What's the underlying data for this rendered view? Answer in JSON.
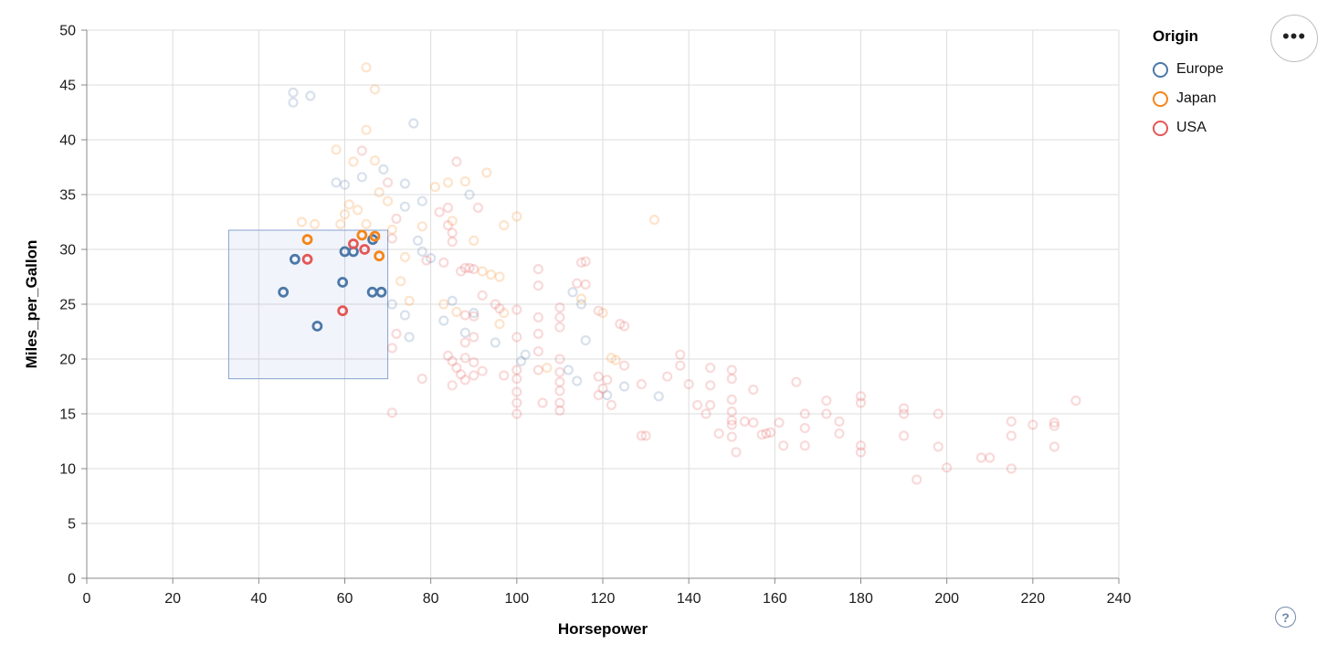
{
  "legend": {
    "title": "Origin",
    "items": [
      {
        "label": "Europe",
        "color": "#4c78a8"
      },
      {
        "label": "Japan",
        "color": "#f58518"
      },
      {
        "label": "USA",
        "color": "#e45756"
      }
    ]
  },
  "controls": {
    "menu_icon": "•••",
    "help_label": "?"
  },
  "chart_data": {
    "type": "scatter",
    "title": "",
    "xlabel": "Horsepower",
    "ylabel": "Miles_per_Gallon",
    "xlim": [
      0,
      240
    ],
    "ylim": [
      0,
      50
    ],
    "x_ticks": [
      0,
      20,
      40,
      60,
      80,
      100,
      120,
      140,
      160,
      180,
      200,
      220,
      240
    ],
    "y_ticks": [
      0,
      5,
      10,
      15,
      20,
      25,
      30,
      35,
      40,
      45,
      50
    ],
    "grid": true,
    "legend_position": "top-right",
    "marker": {
      "shape": "open-circle",
      "radius": 4.5,
      "stroke_width": 2.2,
      "unselected_opacity": 0.22
    },
    "brush_selection": {
      "x": [
        33,
        70
      ],
      "y": [
        18.2,
        31.75
      ],
      "fill": "rgba(114,150,210,0.10)",
      "stroke": "#88a2d0"
    },
    "series": [
      {
        "name": "Europe",
        "color": "#4c78a8",
        "selected": [
          [
            45.7,
            26.1
          ],
          [
            48.4,
            29.1
          ],
          [
            53.6,
            23
          ],
          [
            59.5,
            27
          ],
          [
            60,
            29.8
          ],
          [
            62,
            29.8
          ],
          [
            66.5,
            30.9
          ],
          [
            66.4,
            26.1
          ],
          [
            68.5,
            26.1
          ]
        ],
        "unselected": [
          [
            48,
            44.3
          ],
          [
            52,
            44
          ],
          [
            48,
            43.4
          ],
          [
            76,
            41.5
          ],
          [
            69,
            37.3
          ],
          [
            60,
            35.9
          ],
          [
            58,
            36.1
          ],
          [
            74,
            36
          ],
          [
            89,
            35
          ],
          [
            78,
            34.4
          ],
          [
            74,
            33.9
          ],
          [
            64,
            36.6
          ],
          [
            77,
            30.8
          ],
          [
            78,
            29.8
          ],
          [
            80,
            29.2
          ],
          [
            85,
            25.3
          ],
          [
            90,
            24.2
          ],
          [
            83,
            23.5
          ],
          [
            88,
            22.4
          ],
          [
            95,
            21.5
          ],
          [
            71,
            25
          ],
          [
            74,
            24
          ],
          [
            75,
            22
          ],
          [
            101,
            19.8
          ],
          [
            102,
            20.4
          ],
          [
            113,
            26.1
          ],
          [
            115,
            25
          ],
          [
            116,
            21.7
          ],
          [
            112,
            19
          ],
          [
            114,
            18
          ],
          [
            121,
            16.7
          ],
          [
            125,
            17.5
          ],
          [
            133,
            16.6
          ]
        ]
      },
      {
        "name": "Japan",
        "color": "#f58518",
        "selected": [
          [
            51.3,
            30.9
          ],
          [
            64,
            31.3
          ],
          [
            67,
            31.2
          ],
          [
            68,
            29.4
          ]
        ],
        "unselected": [
          [
            65,
            46.6
          ],
          [
            67,
            44.6
          ],
          [
            65,
            40.9
          ],
          [
            58,
            39.1
          ],
          [
            67,
            38.1
          ],
          [
            62,
            38
          ],
          [
            93,
            37
          ],
          [
            88,
            36.2
          ],
          [
            84,
            36.1
          ],
          [
            81,
            35.7
          ],
          [
            68,
            35.2
          ],
          [
            100,
            33
          ],
          [
            97,
            32.2
          ],
          [
            132,
            32.7
          ],
          [
            90,
            30.8
          ],
          [
            94,
            27.7
          ],
          [
            96,
            27.5
          ],
          [
            92,
            28
          ],
          [
            74,
            29.3
          ],
          [
            73,
            27.1
          ],
          [
            75,
            25.3
          ],
          [
            83,
            25
          ],
          [
            86,
            24.3
          ],
          [
            97,
            24.2
          ],
          [
            96,
            23.2
          ],
          [
            107,
            19.2
          ],
          [
            123,
            19.9
          ],
          [
            122,
            20.1
          ],
          [
            115,
            25.5
          ],
          [
            120,
            24.2
          ],
          [
            60,
            33.2
          ],
          [
            53,
            32.3
          ],
          [
            50,
            32.5
          ],
          [
            59,
            32.3
          ],
          [
            65,
            32.3
          ],
          [
            61,
            34.1
          ],
          [
            70,
            34.4
          ],
          [
            63,
            33.6
          ],
          [
            71,
            31.8
          ],
          [
            78,
            32.1
          ],
          [
            85,
            32.6
          ]
        ]
      },
      {
        "name": "USA",
        "color": "#e45756",
        "selected": [
          [
            51.3,
            29.1
          ],
          [
            62,
            30.5
          ],
          [
            64.6,
            30
          ],
          [
            59.5,
            24.4
          ]
        ],
        "unselected": [
          [
            64,
            39
          ],
          [
            86,
            38
          ],
          [
            70,
            36.1
          ],
          [
            84,
            33.8
          ],
          [
            91,
            33.8
          ],
          [
            72,
            32.8
          ],
          [
            82,
            33.4
          ],
          [
            84,
            32.2
          ],
          [
            85,
            31.5
          ],
          [
            85,
            30.7
          ],
          [
            71,
            31
          ],
          [
            88,
            28.3
          ],
          [
            89,
            28.3
          ],
          [
            90,
            28.2
          ],
          [
            87,
            28
          ],
          [
            105,
            28.2
          ],
          [
            105,
            26.7
          ],
          [
            115,
            28.8
          ],
          [
            114,
            26.9
          ],
          [
            116,
            28.9
          ],
          [
            116,
            26.8
          ],
          [
            79,
            29
          ],
          [
            83,
            28.8
          ],
          [
            92,
            25.8
          ],
          [
            95,
            25
          ],
          [
            88,
            24
          ],
          [
            90,
            23.9
          ],
          [
            100,
            24.5
          ],
          [
            105,
            23.8
          ],
          [
            110,
            24.7
          ],
          [
            110,
            23.8
          ],
          [
            96,
            24.6
          ],
          [
            105,
            22.3
          ],
          [
            110,
            22.9
          ],
          [
            90,
            22
          ],
          [
            88,
            21.5
          ],
          [
            100,
            22
          ],
          [
            119,
            24.4
          ],
          [
            124,
            23.2
          ],
          [
            125,
            23
          ],
          [
            125,
            19.4
          ],
          [
            72,
            22.3
          ],
          [
            71,
            21
          ],
          [
            78,
            18.2
          ],
          [
            71,
            15.1
          ],
          [
            84,
            20.3
          ],
          [
            85,
            19.8
          ],
          [
            86,
            19.2
          ],
          [
            87,
            18.6
          ],
          [
            88,
            20.1
          ],
          [
            88,
            18.1
          ],
          [
            90,
            19.7
          ],
          [
            90,
            18.5
          ],
          [
            85,
            17.6
          ],
          [
            92,
            18.9
          ],
          [
            100,
            19
          ],
          [
            100,
            18.2
          ],
          [
            100,
            17
          ],
          [
            100,
            16
          ],
          [
            100,
            15
          ],
          [
            105,
            20.7
          ],
          [
            105,
            19
          ],
          [
            106,
            16
          ],
          [
            97,
            18.5
          ],
          [
            110,
            20
          ],
          [
            110,
            18.8
          ],
          [
            110,
            17.9
          ],
          [
            110,
            17.1
          ],
          [
            110,
            16
          ],
          [
            110,
            15.3
          ],
          [
            121,
            18.1
          ],
          [
            122,
            15.8
          ],
          [
            129,
            17.7
          ],
          [
            129,
            13
          ],
          [
            130,
            13
          ],
          [
            119,
            18.4
          ],
          [
            120,
            17.3
          ],
          [
            119,
            16.7
          ],
          [
            135,
            18.4
          ],
          [
            138,
            20.4
          ],
          [
            138,
            19.4
          ],
          [
            140,
            17.7
          ],
          [
            142,
            15.8
          ],
          [
            144,
            15
          ],
          [
            145,
            19.2
          ],
          [
            145,
            17.6
          ],
          [
            145,
            15.8
          ],
          [
            147,
            13.2
          ],
          [
            150,
            19
          ],
          [
            150,
            18.2
          ],
          [
            150,
            16.3
          ],
          [
            150,
            15.2
          ],
          [
            150,
            14.4
          ],
          [
            150,
            14
          ],
          [
            150,
            12.9
          ],
          [
            151,
            11.5
          ],
          [
            153,
            14.3
          ],
          [
            155,
            17.2
          ],
          [
            155,
            14.2
          ],
          [
            157,
            13.1
          ],
          [
            158,
            13.2
          ],
          [
            159,
            13.3
          ],
          [
            161,
            14.2
          ],
          [
            162,
            12.1
          ],
          [
            165,
            17.9
          ],
          [
            167,
            15
          ],
          [
            167,
            13.7
          ],
          [
            167,
            12.1
          ],
          [
            172,
            16.2
          ],
          [
            172,
            15
          ],
          [
            175,
            14.3
          ],
          [
            175,
            13.2
          ],
          [
            180,
            16.6
          ],
          [
            180,
            16
          ],
          [
            180,
            12.1
          ],
          [
            180,
            11.5
          ],
          [
            190,
            15.5
          ],
          [
            190,
            15
          ],
          [
            190,
            13
          ],
          [
            193,
            9
          ],
          [
            198,
            15
          ],
          [
            198,
            12
          ],
          [
            200,
            10.1
          ],
          [
            208,
            11
          ],
          [
            210,
            11
          ],
          [
            215,
            14.3
          ],
          [
            215,
            13
          ],
          [
            215,
            10
          ],
          [
            220,
            14
          ],
          [
            225,
            14.2
          ],
          [
            225,
            13.9
          ],
          [
            225,
            12
          ],
          [
            230,
            16.2
          ]
        ]
      }
    ]
  }
}
